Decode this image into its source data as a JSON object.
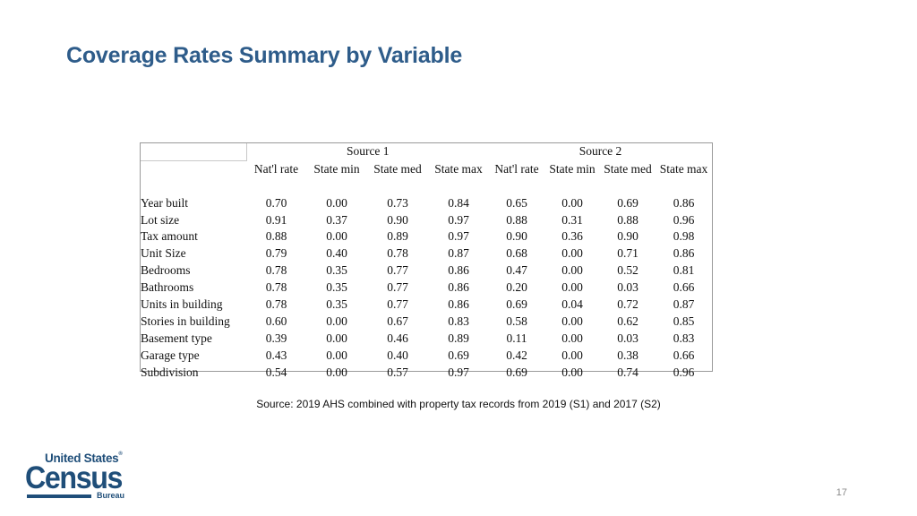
{
  "slide": {
    "title": "Coverage Rates Summary by Variable",
    "caption": "Source: 2019 AHS combined with property tax records from 2019 (S1) and 2017 (S2)",
    "page_number": "17"
  },
  "logo": {
    "top_text": "United States",
    "main_text": "Census",
    "bottom_text": "Bureau",
    "color": "#1f4e79"
  },
  "table": {
    "groups": [
      "Source 1",
      "Source 2"
    ],
    "columns": [
      "Nat'l rate",
      "State min",
      "State med",
      "State max",
      "Nat'l rate",
      "State min",
      "State med",
      "State max"
    ],
    "rows": [
      {
        "label": "Year built",
        "values": [
          "0.70",
          "0.00",
          "0.73",
          "0.84",
          "0.65",
          "0.00",
          "0.69",
          "0.86"
        ]
      },
      {
        "label": "Lot size",
        "values": [
          "0.91",
          "0.37",
          "0.90",
          "0.97",
          "0.88",
          "0.31",
          "0.88",
          "0.96"
        ]
      },
      {
        "label": "Tax amount",
        "values": [
          "0.88",
          "0.00",
          "0.89",
          "0.97",
          "0.90",
          "0.36",
          "0.90",
          "0.98"
        ]
      },
      {
        "label": "Unit Size",
        "values": [
          "0.79",
          "0.40",
          "0.78",
          "0.87",
          "0.68",
          "0.00",
          "0.71",
          "0.86"
        ]
      },
      {
        "label": "Bedrooms",
        "values": [
          "0.78",
          "0.35",
          "0.77",
          "0.86",
          "0.47",
          "0.00",
          "0.52",
          "0.81"
        ]
      },
      {
        "label": "Bathrooms",
        "values": [
          "0.78",
          "0.35",
          "0.77",
          "0.86",
          "0.20",
          "0.00",
          "0.03",
          "0.66"
        ]
      },
      {
        "label": "Units in building",
        "values": [
          "0.78",
          "0.35",
          "0.77",
          "0.86",
          "0.69",
          "0.04",
          "0.72",
          "0.87"
        ]
      },
      {
        "label": "Stories in building",
        "values": [
          "0.60",
          "0.00",
          "0.67",
          "0.83",
          "0.58",
          "0.00",
          "0.62",
          "0.85"
        ]
      },
      {
        "label": "Basement type",
        "values": [
          "0.39",
          "0.00",
          "0.46",
          "0.89",
          "0.11",
          "0.00",
          "0.03",
          "0.83"
        ]
      },
      {
        "label": "Garage type",
        "values": [
          "0.43",
          "0.00",
          "0.40",
          "0.69",
          "0.42",
          "0.00",
          "0.38",
          "0.66"
        ]
      },
      {
        "label": "Subdivision",
        "values": [
          "0.54",
          "0.00",
          "0.57",
          "0.97",
          "0.69",
          "0.00",
          "0.74",
          "0.96"
        ]
      }
    ]
  }
}
